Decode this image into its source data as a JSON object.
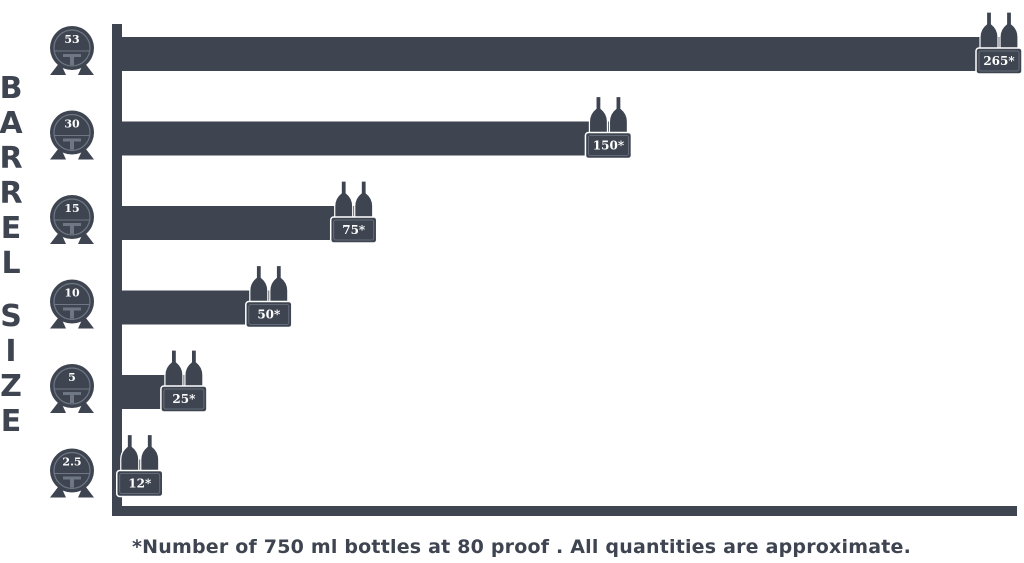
{
  "chart_data": {
    "type": "bar",
    "orientation": "horizontal",
    "ylabel": "BARREL SIZE",
    "categories": [
      "53",
      "30",
      "15",
      "10",
      "5",
      "2.5"
    ],
    "values": [
      265,
      150,
      75,
      50,
      25,
      12
    ],
    "value_labels": [
      "265*",
      "150*",
      "75*",
      "50*",
      "25*",
      "12*"
    ],
    "xlim": [
      0,
      265
    ],
    "grid": false,
    "bar_color": "#3e4551"
  },
  "footnote": "*Number of 750 ml bottles at 80 proof . All quantities are approximate."
}
